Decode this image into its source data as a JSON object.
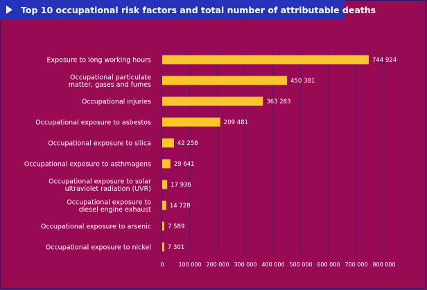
{
  "title": "Top 10 occupational risk factors and total number of attributable deaths",
  "icons": {
    "play": "play-icon"
  },
  "colors": {
    "background": "#990a55",
    "bar": "#f9c72a",
    "title_bg": "#2433b8",
    "grid": "#3d2070"
  },
  "chart_data": {
    "type": "bar",
    "orientation": "horizontal",
    "title": "Top 10 occupational risk factors and total number of attributable deaths",
    "xlabel": "",
    "ylabel": "",
    "xlim": [
      0,
      800000
    ],
    "grid": true,
    "categories": [
      "Exposure to long working hours",
      "Occupational particulate matter, gases and fumes",
      "Occupational injuries",
      "Occupational exposure to asbestos",
      "Occupational exposure to silica",
      "Occupational exposure to asthmagens",
      "Occupational exposure to solar ultraviolet radiation (UVR)",
      "Occupational exposure to diesel engine exhaust",
      "Occupational exposure to arsenic",
      "Occupational exposure to nickel"
    ],
    "category_lines": [
      [
        "Exposure to long working hours"
      ],
      [
        "Occupational particulate",
        "matter, gases and fumes"
      ],
      [
        "Occupational injuries"
      ],
      [
        "Occupational exposure to asbestos"
      ],
      [
        "Occupational exposure to silica"
      ],
      [
        "Occupational exposure to asthmagens"
      ],
      [
        "Occupational exposure to solar",
        "ultraviolet radiation (UVR)"
      ],
      [
        "Occupational exposure to",
        "diesel engine exhaust"
      ],
      [
        "Occupational exposure to arsenic"
      ],
      [
        "Occupational exposure to nickel"
      ]
    ],
    "values": [
      744924,
      450381,
      363283,
      209481,
      42258,
      29641,
      17936,
      14728,
      7589,
      7301
    ],
    "value_labels": [
      "744 924",
      "450 381",
      "363 283",
      "209 481",
      "42 258",
      "29 641",
      "17 936",
      "14 728",
      "7 589",
      "7 301"
    ],
    "ticks": [
      0,
      100000,
      200000,
      300000,
      400000,
      500000,
      600000,
      700000,
      800000
    ],
    "tick_labels": [
      "0",
      "100 000",
      "200 000",
      "300 000",
      "400 000",
      "500 000",
      "600 000",
      "700 000",
      "800 000"
    ]
  }
}
